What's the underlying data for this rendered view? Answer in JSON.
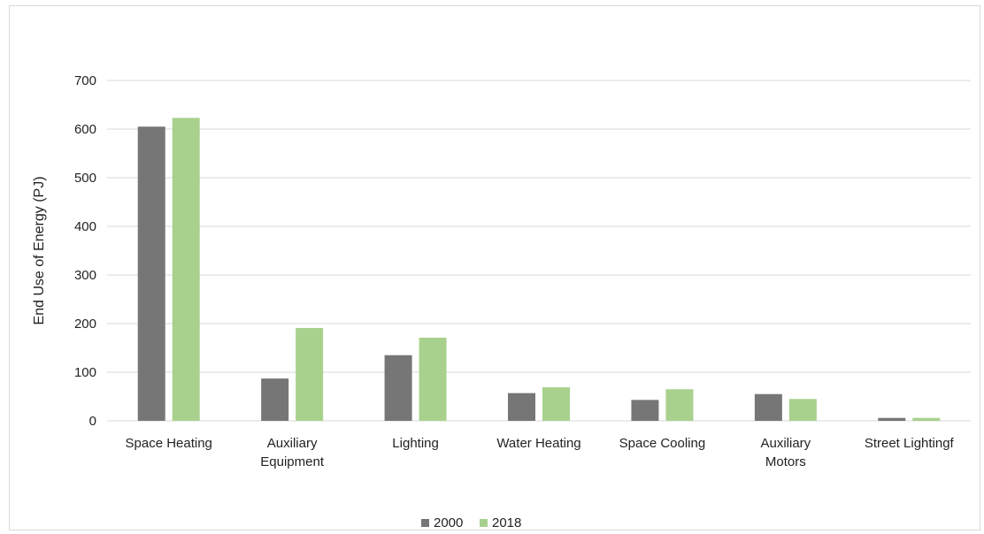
{
  "chart_data": {
    "type": "bar",
    "categories": [
      [
        "Space Heating"
      ],
      [
        "Auxiliary",
        "Equipment"
      ],
      [
        "Lighting"
      ],
      [
        "Water Heating"
      ],
      [
        "Space Cooling"
      ],
      [
        "Auxiliary",
        "Motors"
      ],
      [
        "Street Lightingf"
      ]
    ],
    "series": [
      {
        "name": "2000",
        "color": "#767676",
        "values": [
          605,
          87,
          135,
          57,
          43,
          55,
          6
        ]
      },
      {
        "name": "2018",
        "color": "#a9d18e",
        "values": [
          623,
          191,
          171,
          69,
          65,
          45,
          6
        ]
      }
    ],
    "ylabel": "End Use of Energy (PJ)",
    "ylim": [
      0,
      700
    ],
    "yticks": [
      0,
      100,
      200,
      300,
      400,
      500,
      600,
      700
    ],
    "grid": true,
    "legend_position": "bottom"
  }
}
